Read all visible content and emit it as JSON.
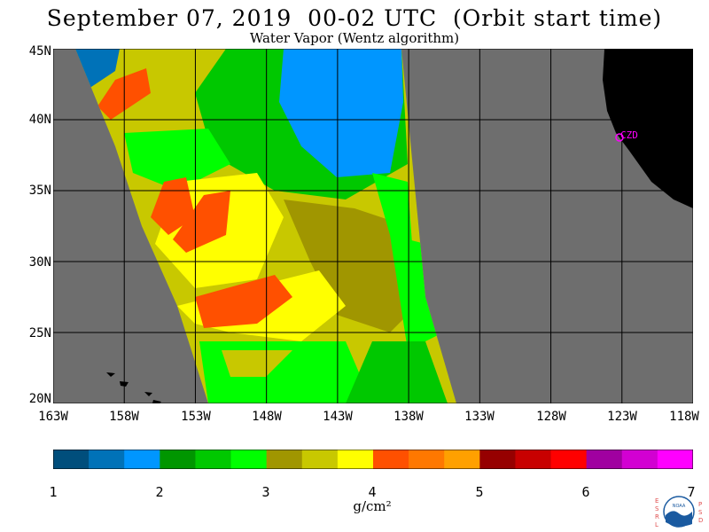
{
  "header": {
    "title": "September 07, 2019  00-02 UTC  (Orbit start time)",
    "subtitle": "Water Vapor (Wentz algorithm)"
  },
  "map": {
    "lat_labels": [
      "45N",
      "40N",
      "35N",
      "30N",
      "25N",
      "20N"
    ],
    "lon_labels": [
      "163W",
      "158W",
      "153W",
      "148W",
      "143W",
      "138W",
      "133W",
      "128W",
      "123W",
      "118W"
    ],
    "lat_range": [
      20,
      45
    ],
    "lon_range": [
      -163,
      -118
    ],
    "station_label": "CZD",
    "colors": {
      "no_data": "#6e6e6e",
      "land": "#000000",
      "grid": "#000000",
      "station": "#ff00ff"
    }
  },
  "colorbar": {
    "tick_labels": [
      "1",
      "2",
      "3",
      "4",
      "5",
      "6",
      "7"
    ],
    "units": "g/cm²",
    "colors": [
      "#004e7c",
      "#0072b8",
      "#0096ff",
      "#009600",
      "#00c800",
      "#00ff00",
      "#a09600",
      "#c8c800",
      "#ffff00",
      "#ff5000",
      "#ff7800",
      "#ffa000",
      "#960000",
      "#c80000",
      "#ff0000",
      "#a000a0",
      "#d200d2",
      "#ff00ff"
    ]
  },
  "logo": {
    "left_letters": "ESRL",
    "right_letters": "PSD",
    "center": "NOAA"
  }
}
